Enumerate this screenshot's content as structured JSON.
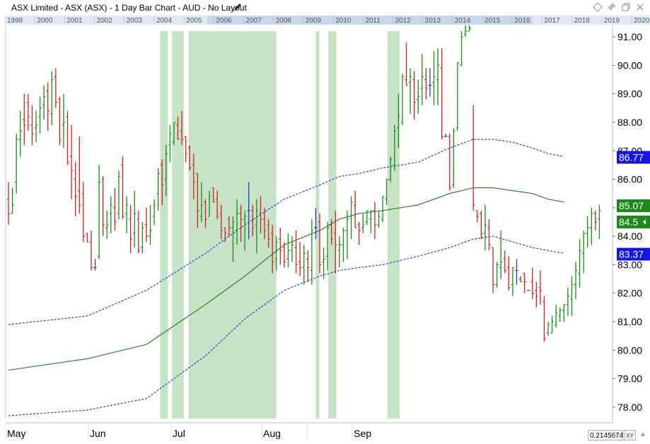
{
  "window": {
    "title": "ASX Limited - ASX (ASX) - 1 Day Bar Chart - AUD - No Layout",
    "edit_icon": "pencil-icon",
    "controls": [
      "diamond-icon",
      "pin-icon",
      "restore-icon",
      "close-icon"
    ]
  },
  "colors": {
    "up": "#1a8a1a",
    "down": "#cc2222",
    "neutral": "#1f3fbf",
    "highlight": "#c6e3c6",
    "ma": "#1a7a1a",
    "band": "#1a2fd6",
    "badge_blue": "#1515e6",
    "badge_green": "#1a8a1a"
  },
  "readout": {
    "value": "0.2145674",
    "xy_label": "XY",
    "zoom_icon": "plus-icon"
  },
  "chart_data": {
    "type": "bar",
    "subtype": "ohlc",
    "title": "ASX Limited - ASX (ASX) - 1 Day Bar Chart - AUD - No Layout",
    "ylim": [
      77.6,
      91.4
    ],
    "y_axis_position": "right",
    "y_ticks": [
      "78.00",
      "79.00",
      "80.00",
      "81.00",
      "82.00",
      "83.00",
      "84.00",
      "85.00",
      "86.00",
      "87.00",
      "88.00",
      "89.00",
      "90.00",
      "91.00"
    ],
    "x_months": [
      {
        "label": "May",
        "pos": 0
      },
      {
        "label": "Jun",
        "pos": 21
      },
      {
        "label": "Jul",
        "pos": 42
      },
      {
        "label": "Aug",
        "pos": 65
      },
      {
        "label": "Sep",
        "pos": 88
      }
    ],
    "year_strip": [
      "1998",
      "2000",
      "2001",
      "2002",
      "2003",
      "2004",
      "2005",
      "2006",
      "2007",
      "2008",
      "2009",
      "2010",
      "2011",
      "2012",
      "2013",
      "2014",
      "2015",
      "2016",
      "2017",
      "2018",
      "2019",
      "2020"
    ],
    "highlight_ranges": [
      [
        38.5,
        40.5
      ],
      [
        41.5,
        44.5
      ],
      [
        45.7,
        68.0
      ],
      [
        78.0,
        78.9
      ],
      [
        81.2,
        83.2
      ],
      [
        96.2,
        99.3
      ]
    ],
    "bars": [
      [
        85.3,
        84.4,
        85.9,
        84.8
      ],
      [
        84.8,
        84.8,
        85.7,
        85.1
      ],
      [
        85.9,
        85.5,
        87.6,
        87.4
      ],
      [
        87.4,
        86.8,
        88.4,
        87.7
      ],
      [
        88.1,
        87.2,
        89.0,
        87.9
      ],
      [
        88.7,
        87.7,
        89.0,
        88.2
      ],
      [
        87.9,
        87.2,
        88.6,
        87.6
      ],
      [
        87.8,
        87.3,
        88.4,
        87.9
      ],
      [
        88.2,
        87.6,
        88.9,
        88.5
      ],
      [
        88.6,
        88.1,
        89.3,
        88.9
      ],
      [
        89.1,
        87.7,
        89.4,
        88.4
      ],
      [
        88.3,
        87.9,
        89.8,
        89.5
      ],
      [
        89.6,
        88.5,
        89.9,
        88.7
      ],
      [
        88.8,
        87.2,
        88.9,
        87.4
      ],
      [
        87.9,
        87.1,
        89.0,
        88.0
      ],
      [
        88.2,
        86.5,
        88.4,
        86.6
      ],
      [
        86.8,
        85.3,
        87.9,
        86.3
      ],
      [
        86.0,
        84.7,
        86.6,
        85.4
      ],
      [
        85.6,
        84.8,
        87.5,
        85.1
      ],
      [
        85.5,
        83.8,
        85.9,
        84.0
      ],
      [
        84.1,
        83.8,
        84.1,
        83.8
      ],
      [
        83.8,
        82.8,
        84.2,
        82.9
      ],
      [
        82.9,
        82.8,
        83.2,
        82.9
      ],
      [
        83.3,
        83.2,
        86.5,
        85.9
      ],
      [
        86.0,
        84.0,
        86.1,
        84.4
      ],
      [
        84.3,
        83.9,
        84.9,
        84.4
      ],
      [
        84.8,
        84.1,
        85.4,
        85.1
      ],
      [
        85.0,
        84.2,
        85.7,
        84.5
      ],
      [
        84.8,
        84.6,
        86.3,
        86.1
      ],
      [
        86.5,
        84.6,
        86.8,
        84.7
      ],
      [
        84.8,
        84.1,
        85.4,
        85.1
      ],
      [
        84.6,
        83.4,
        85.1,
        83.9
      ],
      [
        84.1,
        83.6,
        85.6,
        84.8
      ],
      [
        84.6,
        83.4,
        84.9,
        83.5
      ],
      [
        83.6,
        83.4,
        84.5,
        84.3
      ],
      [
        84.4,
        83.8,
        85.0,
        84.0
      ],
      [
        84.0,
        83.7,
        85.1,
        84.2
      ],
      [
        84.7,
        84.4,
        85.3,
        85.1
      ],
      [
        85.5,
        84.9,
        86.4,
        86.2
      ],
      [
        86.5,
        85.1,
        86.7,
        85.8
      ],
      [
        86.0,
        85.4,
        87.2,
        86.9
      ],
      [
        87.2,
        86.6,
        87.9,
        87.6
      ],
      [
        87.3,
        87.2,
        88.0,
        88.0
      ],
      [
        87.9,
        87.4,
        88.2,
        87.4
      ],
      [
        87.7,
        87.2,
        88.4,
        87.4
      ],
      [
        87.5,
        86.6,
        87.5,
        86.9
      ],
      [
        87.1,
        86.3,
        87.2,
        86.4
      ],
      [
        86.5,
        85.3,
        86.9,
        85.9
      ],
      [
        86.2,
        84.3,
        86.2,
        84.9
      ],
      [
        84.7,
        84.5,
        85.9,
        85.1
      ],
      [
        85.2,
        84.3,
        85.3,
        84.6
      ],
      [
        84.7,
        84.7,
        85.6,
        85.4
      ],
      [
        85.7,
        85.2,
        85.7,
        85.2
      ],
      [
        85.3,
        84.6,
        85.6,
        84.7
      ],
      [
        84.8,
        83.9,
        85.1,
        84.2
      ],
      [
        84.3,
        83.8,
        84.3,
        84.1
      ],
      [
        84.6,
        84.0,
        84.7,
        84.3
      ],
      [
        84.3,
        83.1,
        84.7,
        84.5
      ],
      [
        84.2,
        83.7,
        85.3,
        84.8
      ],
      [
        84.8,
        83.8,
        85.1,
        84.6
      ],
      [
        84.6,
        83.5,
        84.9,
        84.7
      ],
      [
        84.9,
        83.9,
        85.9,
        84.9
      ],
      [
        84.9,
        84.0,
        85.1,
        84.3
      ],
      [
        84.4,
        83.4,
        85.3,
        84.9
      ],
      [
        84.8,
        84.1,
        85.4,
        84.6
      ],
      [
        84.6,
        83.9,
        85.0,
        84.2
      ],
      [
        84.4,
        83.6,
        84.6,
        83.9
      ],
      [
        84.1,
        82.7,
        84.4,
        83.1
      ],
      [
        83.2,
        82.8,
        84.0,
        83.8
      ],
      [
        83.9,
        83.0,
        84.3,
        83.5
      ],
      [
        83.6,
        82.9,
        83.8,
        83.1
      ],
      [
        83.2,
        82.9,
        84.1,
        83.5
      ],
      [
        83.5,
        83.1,
        84.0,
        83.7
      ],
      [
        83.6,
        82.7,
        84.2,
        83.0
      ],
      [
        83.1,
        82.6,
        83.8,
        82.9
      ],
      [
        82.9,
        82.3,
        83.7,
        83.4
      ],
      [
        83.2,
        82.4,
        83.5,
        82.9
      ],
      [
        82.8,
        82.3,
        84.6,
        84.2
      ],
      [
        84.3,
        83.9,
        85.0,
        84.3
      ],
      [
        84.5,
        82.7,
        84.8,
        83.0
      ],
      [
        83.1,
        82.5,
        83.6,
        83.2
      ],
      [
        83.3,
        82.8,
        84.5,
        84.3
      ],
      [
        84.4,
        83.7,
        84.6,
        83.9
      ],
      [
        84.1,
        82.7,
        84.9,
        83.7
      ],
      [
        83.5,
        82.9,
        84.0,
        83.7
      ],
      [
        83.7,
        83.1,
        84.3,
        84.2
      ],
      [
        84.2,
        83.2,
        84.9,
        84.6
      ],
      [
        84.7,
        83.9,
        85.4,
        85.2
      ],
      [
        85.1,
        84.3,
        85.6,
        84.3
      ],
      [
        84.4,
        83.7,
        84.5,
        84.2
      ],
      [
        84.3,
        84.1,
        84.8,
        84.4
      ],
      [
        84.5,
        84.4,
        84.9,
        84.9
      ],
      [
        84.6,
        84.1,
        84.9,
        84.9
      ],
      [
        84.9,
        83.9,
        85.2,
        84.4
      ],
      [
        84.4,
        84.3,
        84.9,
        84.7
      ],
      [
        84.6,
        84.5,
        85.4,
        85.4
      ],
      [
        85.3,
        85.1,
        86.0,
        86.0
      ],
      [
        86.0,
        85.9,
        86.8,
        86.7
      ],
      [
        86.5,
        86.3,
        87.9,
        87.7
      ],
      [
        87.8,
        87.1,
        89.0,
        88.2
      ],
      [
        88.0,
        87.9,
        89.7,
        89.6
      ],
      [
        89.5,
        89.3,
        90.8,
        89.3
      ],
      [
        89.4,
        88.3,
        89.9,
        89.6
      ],
      [
        89.5,
        88.1,
        89.8,
        88.7
      ],
      [
        88.8,
        88.3,
        89.5,
        88.9
      ],
      [
        89.2,
        88.6,
        90.4,
        89.6
      ],
      [
        89.5,
        88.8,
        89.9,
        89.2
      ],
      [
        89.3,
        88.9,
        89.9,
        89.3
      ],
      [
        89.4,
        88.6,
        90.5,
        89.6
      ],
      [
        89.5,
        88.6,
        90.6,
        90.0
      ],
      [
        89.9,
        87.4,
        90.6,
        87.5
      ],
      [
        87.5,
        87.5,
        87.6,
        87.5
      ],
      [
        87.5,
        85.6,
        87.6,
        85.7
      ],
      [
        85.8,
        85.7,
        87.8,
        87.7
      ],
      [
        87.8,
        87.7,
        90.1,
        90.1
      ],
      [
        90.0,
        90.0,
        91.2,
        91.0
      ],
      [
        91.1,
        91.0,
        91.4,
        91.2
      ],
      [
        91.2,
        91.2,
        91.4,
        91.3
      ],
      [
        87.4,
        84.9,
        88.6,
        85.1
      ],
      [
        84.9,
        84.5,
        84.9,
        84.7
      ],
      [
        84.8,
        83.9,
        84.9,
        84.1
      ],
      [
        84.1,
        83.5,
        85.1,
        84.4
      ],
      [
        84.3,
        83.5,
        84.6,
        83.7
      ],
      [
        83.6,
        82.0,
        83.6,
        82.3
      ],
      [
        82.3,
        82.2,
        83.1,
        83.0
      ],
      [
        82.9,
        82.5,
        84.2,
        83.1
      ],
      [
        83.2,
        82.7,
        83.5,
        82.8
      ],
      [
        82.9,
        82.1,
        83.3,
        82.2
      ],
      [
        82.3,
        81.9,
        82.9,
        82.9
      ],
      [
        82.8,
        82.3,
        83.2,
        82.8
      ],
      [
        82.5,
        82.4,
        82.6,
        82.4
      ],
      [
        82.7,
        82.0,
        82.7,
        82.4
      ],
      [
        82.1,
        82.1,
        82.1,
        82.1
      ],
      [
        82.4,
        81.8,
        82.9,
        82.0
      ],
      [
        82.1,
        81.5,
        82.4,
        81.9
      ],
      [
        82.2,
        81.6,
        82.8,
        82.1
      ],
      [
        81.7,
        80.3,
        81.9,
        80.4
      ],
      [
        80.6,
        80.5,
        81.0,
        80.9
      ],
      [
        80.6,
        80.6,
        81.2,
        81.0
      ],
      [
        80.9,
        80.8,
        81.6,
        81.3
      ],
      [
        81.2,
        81.0,
        81.5,
        81.4
      ],
      [
        81.4,
        81.0,
        81.6,
        81.6
      ],
      [
        81.6,
        81.2,
        82.2,
        81.9
      ],
      [
        81.8,
        81.2,
        82.6,
        82.3
      ],
      [
        82.3,
        81.8,
        83.1,
        82.8
      ],
      [
        82.7,
        82.2,
        83.9,
        83.5
      ],
      [
        83.4,
        82.7,
        84.2,
        84.1
      ],
      [
        84.1,
        83.6,
        84.7,
        84.3
      ],
      [
        84.3,
        83.7,
        85.0,
        84.8
      ],
      [
        84.8,
        84.2,
        84.9,
        84.5
      ],
      [
        84.6,
        83.9,
        85.1,
        84.9
      ]
    ],
    "ma": {
      "start": 78.8,
      "points": [
        [
          0,
          79.3
        ],
        [
          20,
          79.7
        ],
        [
          35,
          80.2
        ],
        [
          50,
          81.6
        ],
        [
          60,
          82.6
        ],
        [
          70,
          83.7
        ],
        [
          79,
          84.2
        ],
        [
          84,
          84.6
        ],
        [
          89,
          84.8
        ],
        [
          95,
          84.9
        ],
        [
          104,
          85.1
        ],
        [
          112,
          85.5
        ],
        [
          118,
          85.7
        ],
        [
          123,
          85.7
        ],
        [
          128,
          85.6
        ],
        [
          133,
          85.5
        ],
        [
          137,
          85.3
        ],
        [
          141,
          85.2
        ]
      ],
      "lower_band": [
        [
          0,
          77.7
        ],
        [
          20,
          77.9
        ],
        [
          35,
          78.3
        ],
        [
          50,
          79.8
        ],
        [
          60,
          81.1
        ],
        [
          70,
          82.1
        ],
        [
          79,
          82.6
        ],
        [
          84,
          82.8
        ],
        [
          89,
          82.9
        ],
        [
          95,
          83.0
        ],
        [
          104,
          83.3
        ],
        [
          112,
          83.6
        ],
        [
          118,
          83.9
        ],
        [
          123,
          84.0
        ],
        [
          128,
          83.8
        ],
        [
          133,
          83.6
        ],
        [
          137,
          83.5
        ],
        [
          141,
          83.4
        ]
      ],
      "upper_band": [
        [
          0,
          80.9
        ],
        [
          20,
          81.2
        ],
        [
          35,
          82.1
        ],
        [
          50,
          83.4
        ],
        [
          60,
          84.4
        ],
        [
          70,
          85.3
        ],
        [
          79,
          85.8
        ],
        [
          84,
          86.1
        ],
        [
          89,
          86.2
        ],
        [
          95,
          86.4
        ],
        [
          104,
          86.6
        ],
        [
          112,
          87.1
        ],
        [
          118,
          87.4
        ],
        [
          123,
          87.4
        ],
        [
          128,
          87.3
        ],
        [
          133,
          87.1
        ],
        [
          137,
          86.9
        ],
        [
          141,
          86.8
        ]
      ]
    },
    "last_labels": [
      {
        "text": "86.77",
        "value": 86.77,
        "color": "blue"
      },
      {
        "text": "85.07",
        "value": 85.07,
        "color": "green"
      },
      {
        "text": "84.5",
        "value": 84.5,
        "color": "green"
      },
      {
        "text": "83.37",
        "value": 83.37,
        "color": "blue"
      }
    ]
  }
}
